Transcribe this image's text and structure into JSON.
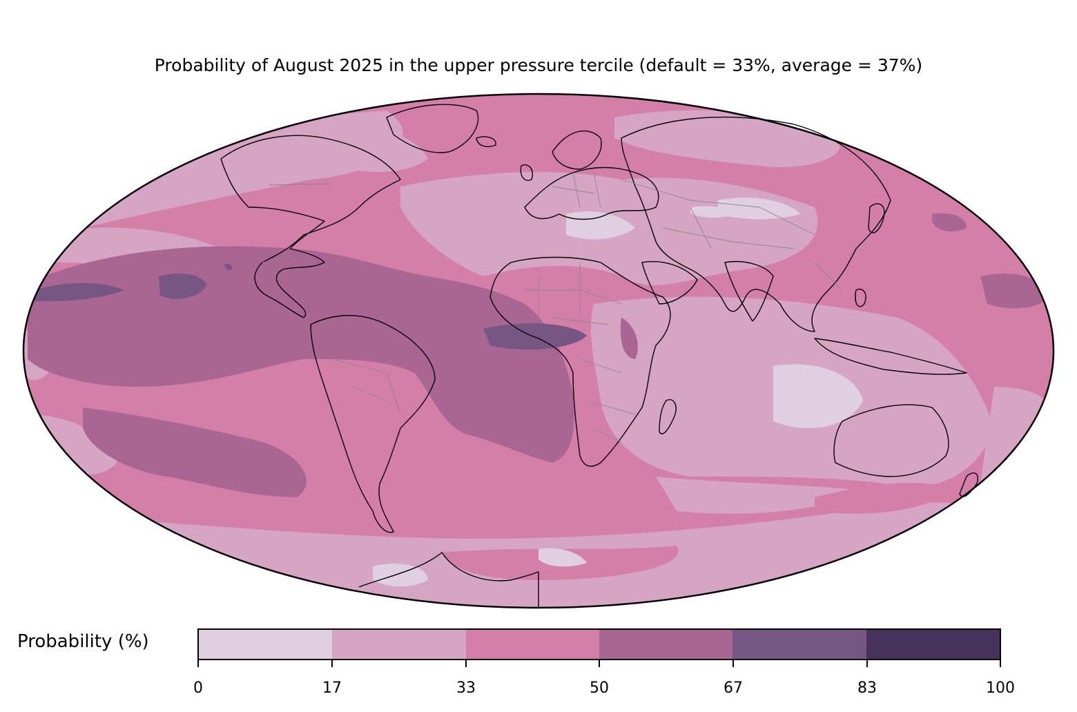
{
  "title": "Probability of August 2025 in the upper pressure tercile (default = 33%, average = 37%)",
  "colorbar": {
    "label": "Probability (%)",
    "ticks": [
      "0",
      "17",
      "33",
      "50",
      "67",
      "83",
      "100"
    ],
    "bins": [
      {
        "range": "0-17",
        "color": "#dfcfe0"
      },
      {
        "range": "17-33",
        "color": "#d5a5c3"
      },
      {
        "range": "33-50",
        "color": "#d47fa8"
      },
      {
        "range": "50-67",
        "color": "#a96692"
      },
      {
        "range": "67-83",
        "color": "#775684"
      },
      {
        "range": "83-100",
        "color": "#44325a"
      }
    ]
  },
  "map": {
    "projection": "Mollweide",
    "layers": [
      "probability-contours",
      "coastlines",
      "country-borders"
    ],
    "coastline_color": "#000000",
    "border_color": "#888888"
  }
}
